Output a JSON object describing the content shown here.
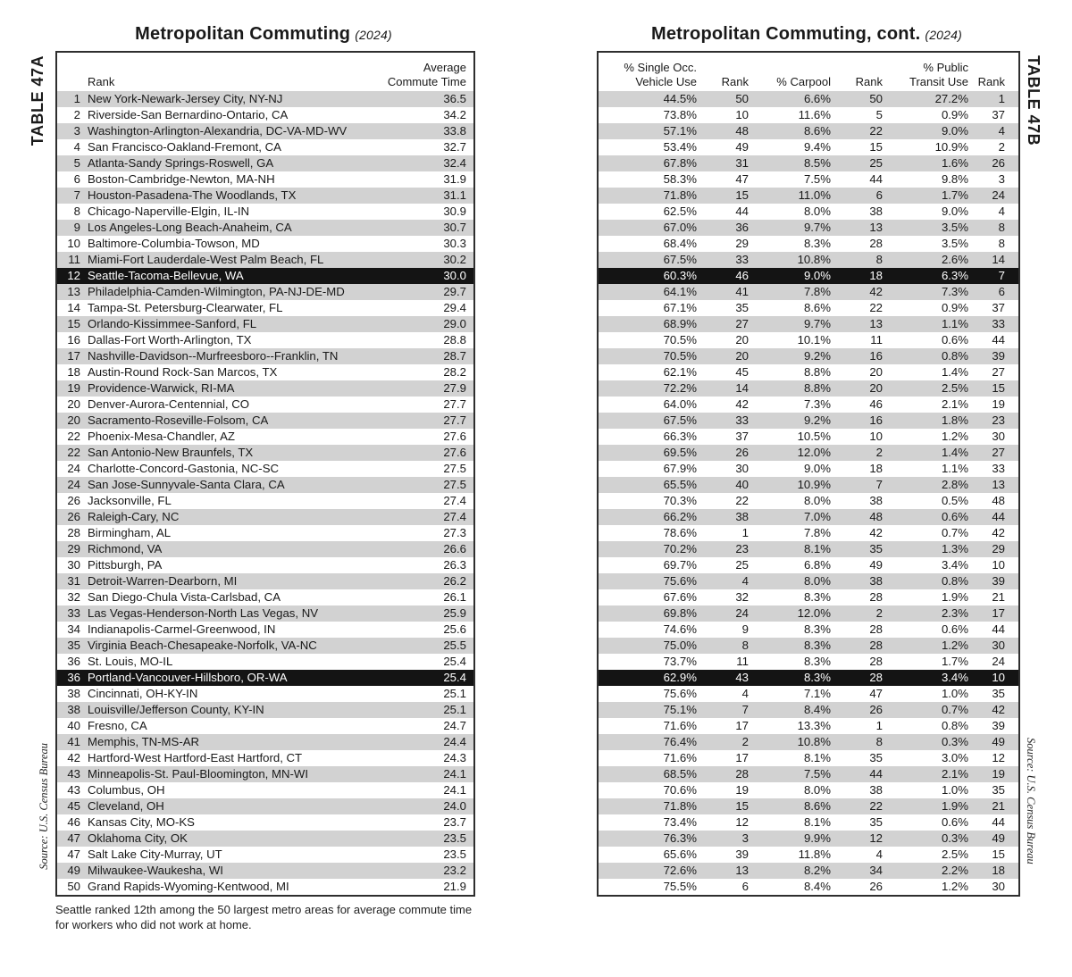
{
  "table_a": {
    "side_label": "TABLE 47A",
    "title": "Metropolitan Commuting",
    "title_suffix": "(2024)",
    "source": "Source: U.S. Census Bureau",
    "footnote": "Seattle ranked 12th among the 50 largest metro areas for average commute time for workers who did not work at home.",
    "header": {
      "rank": "Rank",
      "value_line1": "Average",
      "value_line2": "Commute Time"
    },
    "rows": [
      {
        "rank": "1",
        "city": "New York-Newark-Jersey City, NY-NJ",
        "value": "36.5",
        "highlight": false
      },
      {
        "rank": "2",
        "city": "Riverside-San Bernardino-Ontario, CA",
        "value": "34.2",
        "highlight": false
      },
      {
        "rank": "3",
        "city": "Washington-Arlington-Alexandria, DC-VA-MD-WV",
        "value": "33.8",
        "highlight": false
      },
      {
        "rank": "4",
        "city": "San Francisco-Oakland-Fremont, CA",
        "value": "32.7",
        "highlight": false
      },
      {
        "rank": "5",
        "city": "Atlanta-Sandy Springs-Roswell, GA",
        "value": "32.4",
        "highlight": false
      },
      {
        "rank": "6",
        "city": "Boston-Cambridge-Newton, MA-NH",
        "value": "31.9",
        "highlight": false
      },
      {
        "rank": "7",
        "city": "Houston-Pasadena-The Woodlands, TX",
        "value": "31.1",
        "highlight": false
      },
      {
        "rank": "8",
        "city": "Chicago-Naperville-Elgin, IL-IN",
        "value": "30.9",
        "highlight": false
      },
      {
        "rank": "9",
        "city": "Los Angeles-Long Beach-Anaheim, CA",
        "value": "30.7",
        "highlight": false
      },
      {
        "rank": "10",
        "city": "Baltimore-Columbia-Towson, MD",
        "value": "30.3",
        "highlight": false
      },
      {
        "rank": "11",
        "city": "Miami-Fort Lauderdale-West Palm Beach, FL",
        "value": "30.2",
        "highlight": false
      },
      {
        "rank": "12",
        "city": "Seattle-Tacoma-Bellevue, WA",
        "value": "30.0",
        "highlight": true
      },
      {
        "rank": "13",
        "city": "Philadelphia-Camden-Wilmington, PA-NJ-DE-MD",
        "value": "29.7",
        "highlight": false
      },
      {
        "rank": "14",
        "city": "Tampa-St. Petersburg-Clearwater, FL",
        "value": "29.4",
        "highlight": false
      },
      {
        "rank": "15",
        "city": "Orlando-Kissimmee-Sanford, FL",
        "value": "29.0",
        "highlight": false
      },
      {
        "rank": "16",
        "city": "Dallas-Fort Worth-Arlington, TX",
        "value": "28.8",
        "highlight": false
      },
      {
        "rank": "17",
        "city": "Nashville-Davidson--Murfreesboro--Franklin, TN",
        "value": "28.7",
        "highlight": false
      },
      {
        "rank": "18",
        "city": "Austin-Round Rock-San Marcos, TX",
        "value": "28.2",
        "highlight": false
      },
      {
        "rank": "19",
        "city": "Providence-Warwick, RI-MA",
        "value": "27.9",
        "highlight": false
      },
      {
        "rank": "20",
        "city": "Denver-Aurora-Centennial, CO",
        "value": "27.7",
        "highlight": false
      },
      {
        "rank": "20",
        "city": "Sacramento-Roseville-Folsom, CA",
        "value": "27.7",
        "highlight": false
      },
      {
        "rank": "22",
        "city": "Phoenix-Mesa-Chandler, AZ",
        "value": "27.6",
        "highlight": false
      },
      {
        "rank": "22",
        "city": "San Antonio-New Braunfels, TX",
        "value": "27.6",
        "highlight": false
      },
      {
        "rank": "24",
        "city": "Charlotte-Concord-Gastonia, NC-SC",
        "value": "27.5",
        "highlight": false
      },
      {
        "rank": "24",
        "city": "San Jose-Sunnyvale-Santa Clara, CA",
        "value": "27.5",
        "highlight": false
      },
      {
        "rank": "26",
        "city": "Jacksonville, FL",
        "value": "27.4",
        "highlight": false
      },
      {
        "rank": "26",
        "city": "Raleigh-Cary, NC",
        "value": "27.4",
        "highlight": false
      },
      {
        "rank": "28",
        "city": "Birmingham, AL",
        "value": "27.3",
        "highlight": false
      },
      {
        "rank": "29",
        "city": "Richmond, VA",
        "value": "26.6",
        "highlight": false
      },
      {
        "rank": "30",
        "city": "Pittsburgh, PA",
        "value": "26.3",
        "highlight": false
      },
      {
        "rank": "31",
        "city": "Detroit-Warren-Dearborn, MI",
        "value": "26.2",
        "highlight": false
      },
      {
        "rank": "32",
        "city": "San Diego-Chula Vista-Carlsbad, CA",
        "value": "26.1",
        "highlight": false
      },
      {
        "rank": "33",
        "city": "Las Vegas-Henderson-North Las Vegas, NV",
        "value": "25.9",
        "highlight": false
      },
      {
        "rank": "34",
        "city": "Indianapolis-Carmel-Greenwood, IN",
        "value": "25.6",
        "highlight": false
      },
      {
        "rank": "35",
        "city": "Virginia Beach-Chesapeake-Norfolk, VA-NC",
        "value": "25.5",
        "highlight": false
      },
      {
        "rank": "36",
        "city": "St. Louis, MO-IL",
        "value": "25.4",
        "highlight": false
      },
      {
        "rank": "36",
        "city": "Portland-Vancouver-Hillsboro, OR-WA",
        "value": "25.4",
        "highlight": true
      },
      {
        "rank": "38",
        "city": "Cincinnati, OH-KY-IN",
        "value": "25.1",
        "highlight": false
      },
      {
        "rank": "38",
        "city": "Louisville/Jefferson County, KY-IN",
        "value": "25.1",
        "highlight": false
      },
      {
        "rank": "40",
        "city": "Fresno, CA",
        "value": "24.7",
        "highlight": false
      },
      {
        "rank": "41",
        "city": "Memphis, TN-MS-AR",
        "value": "24.4",
        "highlight": false
      },
      {
        "rank": "42",
        "city": "Hartford-West Hartford-East Hartford, CT",
        "value": "24.3",
        "highlight": false
      },
      {
        "rank": "43",
        "city": "Minneapolis-St. Paul-Bloomington, MN-WI",
        "value": "24.1",
        "highlight": false
      },
      {
        "rank": "43",
        "city": "Columbus, OH",
        "value": "24.1",
        "highlight": false
      },
      {
        "rank": "45",
        "city": "Cleveland, OH",
        "value": "24.0",
        "highlight": false
      },
      {
        "rank": "46",
        "city": "Kansas City, MO-KS",
        "value": "23.7",
        "highlight": false
      },
      {
        "rank": "47",
        "city": "Oklahoma City, OK",
        "value": "23.5",
        "highlight": false
      },
      {
        "rank": "47",
        "city": "Salt Lake City-Murray, UT",
        "value": "23.5",
        "highlight": false
      },
      {
        "rank": "49",
        "city": "Milwaukee-Waukesha, WI",
        "value": "23.2",
        "highlight": false
      },
      {
        "rank": "50",
        "city": "Grand Rapids-Wyoming-Kentwood, MI",
        "value": "21.9",
        "highlight": false
      }
    ]
  },
  "table_b": {
    "side_label": "TABLE 47B",
    "title": "Metropolitan Commuting, cont.",
    "title_suffix": "(2024)",
    "source": "Source: U.S. Census Bureau",
    "header": {
      "sov_line1": "% Single Occ.",
      "sov_line2": "Vehicle Use",
      "rank1": "Rank",
      "carpool": "% Carpool",
      "rank2": "Rank",
      "transit_line1": "% Public",
      "transit_line2": "Transit Use",
      "rank3": "Rank"
    },
    "rows": [
      {
        "sov": "44.5%",
        "sov_rank": "50",
        "carpool": "6.6%",
        "carpool_rank": "50",
        "transit": "27.2%",
        "transit_rank": "1",
        "highlight": false
      },
      {
        "sov": "73.8%",
        "sov_rank": "10",
        "carpool": "11.6%",
        "carpool_rank": "5",
        "transit": "0.9%",
        "transit_rank": "37",
        "highlight": false
      },
      {
        "sov": "57.1%",
        "sov_rank": "48",
        "carpool": "8.6%",
        "carpool_rank": "22",
        "transit": "9.0%",
        "transit_rank": "4",
        "highlight": false
      },
      {
        "sov": "53.4%",
        "sov_rank": "49",
        "carpool": "9.4%",
        "carpool_rank": "15",
        "transit": "10.9%",
        "transit_rank": "2",
        "highlight": false
      },
      {
        "sov": "67.8%",
        "sov_rank": "31",
        "carpool": "8.5%",
        "carpool_rank": "25",
        "transit": "1.6%",
        "transit_rank": "26",
        "highlight": false
      },
      {
        "sov": "58.3%",
        "sov_rank": "47",
        "carpool": "7.5%",
        "carpool_rank": "44",
        "transit": "9.8%",
        "transit_rank": "3",
        "highlight": false
      },
      {
        "sov": "71.8%",
        "sov_rank": "15",
        "carpool": "11.0%",
        "carpool_rank": "6",
        "transit": "1.7%",
        "transit_rank": "24",
        "highlight": false
      },
      {
        "sov": "62.5%",
        "sov_rank": "44",
        "carpool": "8.0%",
        "carpool_rank": "38",
        "transit": "9.0%",
        "transit_rank": "4",
        "highlight": false
      },
      {
        "sov": "67.0%",
        "sov_rank": "36",
        "carpool": "9.7%",
        "carpool_rank": "13",
        "transit": "3.5%",
        "transit_rank": "8",
        "highlight": false
      },
      {
        "sov": "68.4%",
        "sov_rank": "29",
        "carpool": "8.3%",
        "carpool_rank": "28",
        "transit": "3.5%",
        "transit_rank": "8",
        "highlight": false
      },
      {
        "sov": "67.5%",
        "sov_rank": "33",
        "carpool": "10.8%",
        "carpool_rank": "8",
        "transit": "2.6%",
        "transit_rank": "14",
        "highlight": false
      },
      {
        "sov": "60.3%",
        "sov_rank": "46",
        "carpool": "9.0%",
        "carpool_rank": "18",
        "transit": "6.3%",
        "transit_rank": "7",
        "highlight": true
      },
      {
        "sov": "64.1%",
        "sov_rank": "41",
        "carpool": "7.8%",
        "carpool_rank": "42",
        "transit": "7.3%",
        "transit_rank": "6",
        "highlight": false
      },
      {
        "sov": "67.1%",
        "sov_rank": "35",
        "carpool": "8.6%",
        "carpool_rank": "22",
        "transit": "0.9%",
        "transit_rank": "37",
        "highlight": false
      },
      {
        "sov": "68.9%",
        "sov_rank": "27",
        "carpool": "9.7%",
        "carpool_rank": "13",
        "transit": "1.1%",
        "transit_rank": "33",
        "highlight": false
      },
      {
        "sov": "70.5%",
        "sov_rank": "20",
        "carpool": "10.1%",
        "carpool_rank": "11",
        "transit": "0.6%",
        "transit_rank": "44",
        "highlight": false
      },
      {
        "sov": "70.5%",
        "sov_rank": "20",
        "carpool": "9.2%",
        "carpool_rank": "16",
        "transit": "0.8%",
        "transit_rank": "39",
        "highlight": false
      },
      {
        "sov": "62.1%",
        "sov_rank": "45",
        "carpool": "8.8%",
        "carpool_rank": "20",
        "transit": "1.4%",
        "transit_rank": "27",
        "highlight": false
      },
      {
        "sov": "72.2%",
        "sov_rank": "14",
        "carpool": "8.8%",
        "carpool_rank": "20",
        "transit": "2.5%",
        "transit_rank": "15",
        "highlight": false
      },
      {
        "sov": "64.0%",
        "sov_rank": "42",
        "carpool": "7.3%",
        "carpool_rank": "46",
        "transit": "2.1%",
        "transit_rank": "19",
        "highlight": false
      },
      {
        "sov": "67.5%",
        "sov_rank": "33",
        "carpool": "9.2%",
        "carpool_rank": "16",
        "transit": "1.8%",
        "transit_rank": "23",
        "highlight": false
      },
      {
        "sov": "66.3%",
        "sov_rank": "37",
        "carpool": "10.5%",
        "carpool_rank": "10",
        "transit": "1.2%",
        "transit_rank": "30",
        "highlight": false
      },
      {
        "sov": "69.5%",
        "sov_rank": "26",
        "carpool": "12.0%",
        "carpool_rank": "2",
        "transit": "1.4%",
        "transit_rank": "27",
        "highlight": false
      },
      {
        "sov": "67.9%",
        "sov_rank": "30",
        "carpool": "9.0%",
        "carpool_rank": "18",
        "transit": "1.1%",
        "transit_rank": "33",
        "highlight": false
      },
      {
        "sov": "65.5%",
        "sov_rank": "40",
        "carpool": "10.9%",
        "carpool_rank": "7",
        "transit": "2.8%",
        "transit_rank": "13",
        "highlight": false
      },
      {
        "sov": "70.3%",
        "sov_rank": "22",
        "carpool": "8.0%",
        "carpool_rank": "38",
        "transit": "0.5%",
        "transit_rank": "48",
        "highlight": false
      },
      {
        "sov": "66.2%",
        "sov_rank": "38",
        "carpool": "7.0%",
        "carpool_rank": "48",
        "transit": "0.6%",
        "transit_rank": "44",
        "highlight": false
      },
      {
        "sov": "78.6%",
        "sov_rank": "1",
        "carpool": "7.8%",
        "carpool_rank": "42",
        "transit": "0.7%",
        "transit_rank": "42",
        "highlight": false
      },
      {
        "sov": "70.2%",
        "sov_rank": "23",
        "carpool": "8.1%",
        "carpool_rank": "35",
        "transit": "1.3%",
        "transit_rank": "29",
        "highlight": false
      },
      {
        "sov": "69.7%",
        "sov_rank": "25",
        "carpool": "6.8%",
        "carpool_rank": "49",
        "transit": "3.4%",
        "transit_rank": "10",
        "highlight": false
      },
      {
        "sov": "75.6%",
        "sov_rank": "4",
        "carpool": "8.0%",
        "carpool_rank": "38",
        "transit": "0.8%",
        "transit_rank": "39",
        "highlight": false
      },
      {
        "sov": "67.6%",
        "sov_rank": "32",
        "carpool": "8.3%",
        "carpool_rank": "28",
        "transit": "1.9%",
        "transit_rank": "21",
        "highlight": false
      },
      {
        "sov": "69.8%",
        "sov_rank": "24",
        "carpool": "12.0%",
        "carpool_rank": "2",
        "transit": "2.3%",
        "transit_rank": "17",
        "highlight": false
      },
      {
        "sov": "74.6%",
        "sov_rank": "9",
        "carpool": "8.3%",
        "carpool_rank": "28",
        "transit": "0.6%",
        "transit_rank": "44",
        "highlight": false
      },
      {
        "sov": "75.0%",
        "sov_rank": "8",
        "carpool": "8.3%",
        "carpool_rank": "28",
        "transit": "1.2%",
        "transit_rank": "30",
        "highlight": false
      },
      {
        "sov": "73.7%",
        "sov_rank": "11",
        "carpool": "8.3%",
        "carpool_rank": "28",
        "transit": "1.7%",
        "transit_rank": "24",
        "highlight": false
      },
      {
        "sov": "62.9%",
        "sov_rank": "43",
        "carpool": "8.3%",
        "carpool_rank": "28",
        "transit": "3.4%",
        "transit_rank": "10",
        "highlight": true
      },
      {
        "sov": "75.6%",
        "sov_rank": "4",
        "carpool": "7.1%",
        "carpool_rank": "47",
        "transit": "1.0%",
        "transit_rank": "35",
        "highlight": false
      },
      {
        "sov": "75.1%",
        "sov_rank": "7",
        "carpool": "8.4%",
        "carpool_rank": "26",
        "transit": "0.7%",
        "transit_rank": "42",
        "highlight": false
      },
      {
        "sov": "71.6%",
        "sov_rank": "17",
        "carpool": "13.3%",
        "carpool_rank": "1",
        "transit": "0.8%",
        "transit_rank": "39",
        "highlight": false
      },
      {
        "sov": "76.4%",
        "sov_rank": "2",
        "carpool": "10.8%",
        "carpool_rank": "8",
        "transit": "0.3%",
        "transit_rank": "49",
        "highlight": false
      },
      {
        "sov": "71.6%",
        "sov_rank": "17",
        "carpool": "8.1%",
        "carpool_rank": "35",
        "transit": "3.0%",
        "transit_rank": "12",
        "highlight": false
      },
      {
        "sov": "68.5%",
        "sov_rank": "28",
        "carpool": "7.5%",
        "carpool_rank": "44",
        "transit": "2.1%",
        "transit_rank": "19",
        "highlight": false
      },
      {
        "sov": "70.6%",
        "sov_rank": "19",
        "carpool": "8.0%",
        "carpool_rank": "38",
        "transit": "1.0%",
        "transit_rank": "35",
        "highlight": false
      },
      {
        "sov": "71.8%",
        "sov_rank": "15",
        "carpool": "8.6%",
        "carpool_rank": "22",
        "transit": "1.9%",
        "transit_rank": "21",
        "highlight": false
      },
      {
        "sov": "73.4%",
        "sov_rank": "12",
        "carpool": "8.1%",
        "carpool_rank": "35",
        "transit": "0.6%",
        "transit_rank": "44",
        "highlight": false
      },
      {
        "sov": "76.3%",
        "sov_rank": "3",
        "carpool": "9.9%",
        "carpool_rank": "12",
        "transit": "0.3%",
        "transit_rank": "49",
        "highlight": false
      },
      {
        "sov": "65.6%",
        "sov_rank": "39",
        "carpool": "11.8%",
        "carpool_rank": "4",
        "transit": "2.5%",
        "transit_rank": "15",
        "highlight": false
      },
      {
        "sov": "72.6%",
        "sov_rank": "13",
        "carpool": "8.2%",
        "carpool_rank": "34",
        "transit": "2.2%",
        "transit_rank": "18",
        "highlight": false
      },
      {
        "sov": "75.5%",
        "sov_rank": "6",
        "carpool": "8.4%",
        "carpool_rank": "26",
        "transit": "1.2%",
        "transit_rank": "30",
        "highlight": false
      }
    ]
  }
}
